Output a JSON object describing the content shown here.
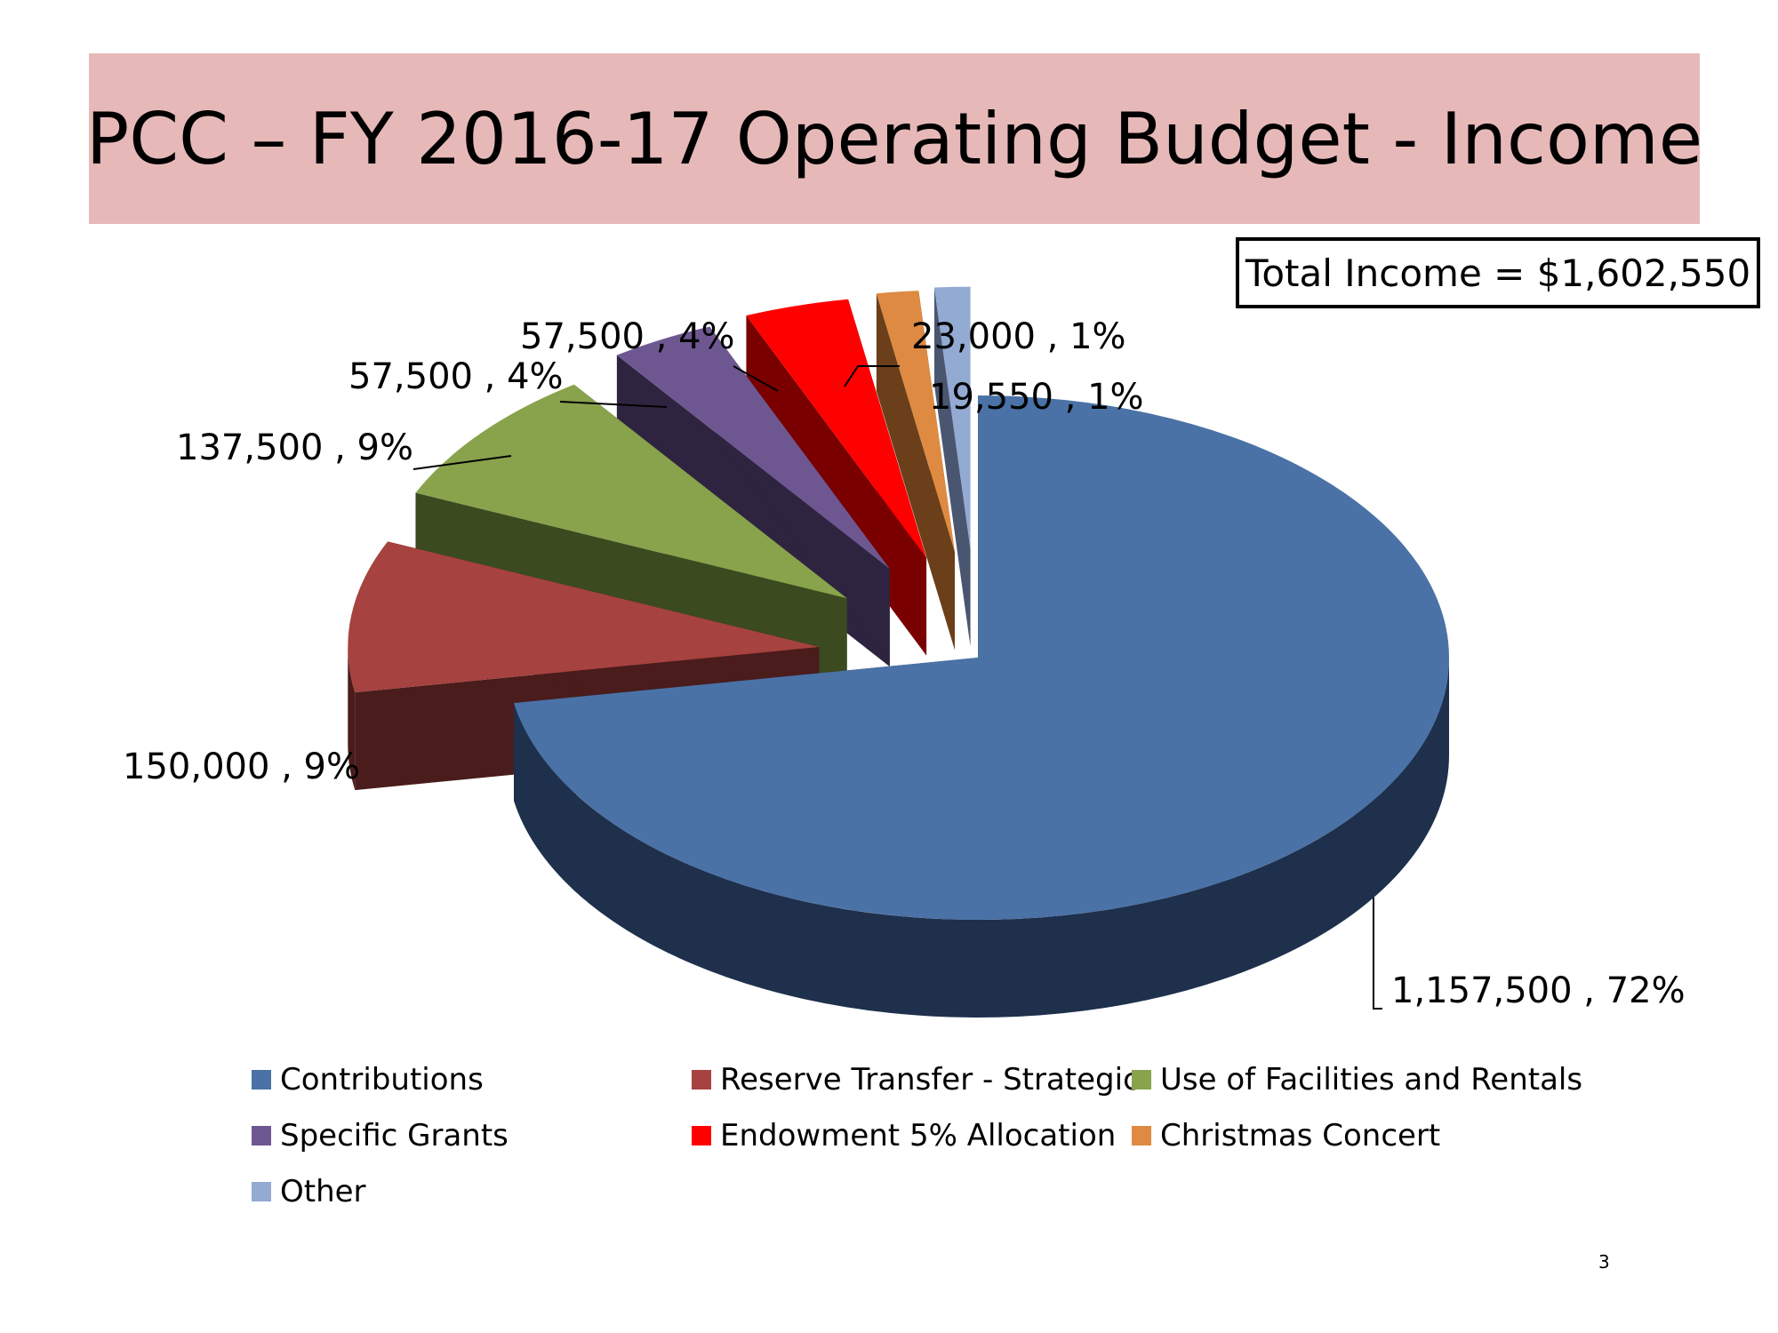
{
  "title": "PCC – FY 2016-17 Operating Budget - Income",
  "total_income": "Total Income = $1,602,550",
  "page_number": "3",
  "chart_data": {
    "type": "pie",
    "style": "3d-exploded",
    "title": "PCC – FY 2016-17 Operating Budget - Income",
    "legend_position": "bottom",
    "slices": [
      {
        "name": "Contributions",
        "value": 1157500,
        "percent": 72,
        "label": "1,157,500 , 72%",
        "color": "#4a72a6",
        "dark": "#1e304c"
      },
      {
        "name": "Reserve Transfer - Strategic",
        "value": 150000,
        "percent": 9,
        "label": "150,000 , 9%",
        "color": "#a6423f",
        "dark": "#4a1c1b"
      },
      {
        "name": "Use of Facilities and Rentals",
        "value": 137500,
        "percent": 9,
        "label": "137,500 , 9%",
        "color": "#88a34c",
        "dark": "#3b4a1f"
      },
      {
        "name": "Specific Grants",
        "value": 57500,
        "percent": 4,
        "label": "57,500 , 4%",
        "color": "#6e5791",
        "dark": "#2e2440"
      },
      {
        "name": "Endowment 5% Allocation",
        "value": 57500,
        "percent": 4,
        "label": "57,500 , 4%",
        "color": "#ff0000",
        "dark": "#7a0000"
      },
      {
        "name": "Christmas Concert",
        "value": 23000,
        "percent": 1,
        "label": "23,000 , 1%",
        "color": "#de8a42",
        "dark": "#6b3f1a"
      },
      {
        "name": "Other",
        "value": 19550,
        "percent": 1,
        "label": "19,550 , 1%",
        "color": "#93aad3",
        "dark": "#4a5670"
      }
    ]
  }
}
